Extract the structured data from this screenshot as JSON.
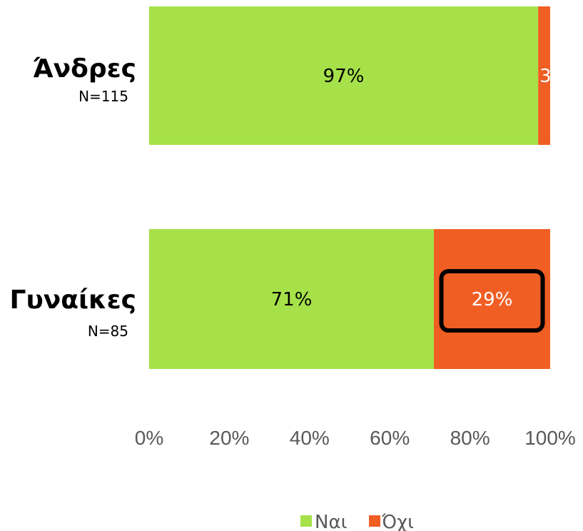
{
  "chart_data": {
    "type": "bar",
    "orientation": "horizontal",
    "stacked": true,
    "categories": [
      "Άνδρες",
      "Γυναίκες"
    ],
    "category_sublabels": [
      "N=115",
      "N=85"
    ],
    "series": [
      {
        "name": "Ναι",
        "values": [
          97,
          71
        ],
        "labels": [
          "97%",
          "71%"
        ],
        "color": "#a6e14a"
      },
      {
        "name": "Όχι",
        "values": [
          3,
          29
        ],
        "labels": [
          "3",
          "29%"
        ],
        "color": "#f05e23"
      }
    ],
    "x_ticks": [
      "0%",
      "20%",
      "40%",
      "60%",
      "80%",
      "100%"
    ],
    "xlim": [
      0,
      100
    ],
    "grid": false,
    "legend": "bottom",
    "highlighted_value": "29%",
    "highlight_color": "#000000"
  }
}
